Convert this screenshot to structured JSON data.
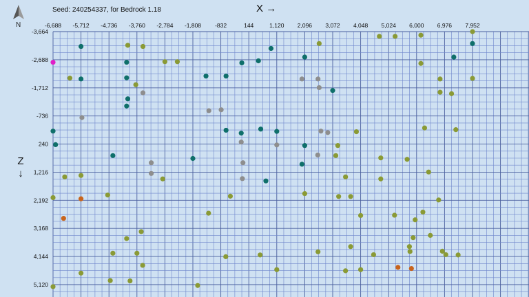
{
  "header": {
    "seed_text": "Seed: 240254337, for Bedrock 1.18",
    "x_axis_label": "X",
    "x_axis_arrow": "→",
    "z_axis_label": "Z",
    "z_axis_arrow": "↓",
    "compass_letter": "N"
  },
  "colors": {
    "background": "#cfe1f2",
    "grid_line": "#6f86cc",
    "grid_major": "#4a5f9e",
    "olive_marker": "#8a9a35",
    "teal_marker": "#0f6f6a",
    "gray_marker": "#8e8e8e",
    "orange_marker": "#c8641c",
    "magenta_marker": "#e01ec8"
  },
  "axes": {
    "x_ticks": [
      "-6,688",
      "-5,712",
      "-4,736",
      "-3,760",
      "-2,784",
      "-1,808",
      "-832",
      "144",
      "1,120",
      "2,096",
      "3,072",
      "4,048",
      "5,024",
      "6,000",
      "6,976",
      "7,952"
    ],
    "z_ticks": [
      "-3,664",
      "-2,688",
      "-1,712",
      "-736",
      "240",
      "1,216",
      "2,192",
      "3,168",
      "4,144",
      "5,120"
    ]
  },
  "chart_data": {
    "type": "scatter",
    "xlim": [
      -6688,
      7952
    ],
    "ylim": [
      -3664,
      5120
    ],
    "y_inverted": true,
    "grid": true,
    "markers": [
      {
        "kind": "magenta",
        "x": -6688,
        "z": -2600
      },
      {
        "kind": "teal",
        "x": -5712,
        "z": -3150
      },
      {
        "kind": "olive",
        "x": -4080,
        "z": -3190
      },
      {
        "kind": "olive",
        "x": -3550,
        "z": -3150
      },
      {
        "kind": "teal",
        "x": -4120,
        "z": -2600
      },
      {
        "kind": "olive",
        "x": -6100,
        "z": -2050
      },
      {
        "kind": "teal",
        "x": -5712,
        "z": -2020
      },
      {
        "kind": "teal",
        "x": -4120,
        "z": -2060
      },
      {
        "kind": "olive",
        "x": -3800,
        "z": -1820
      },
      {
        "kind": "gray",
        "x": -3550,
        "z": -1540
      },
      {
        "kind": "teal",
        "x": -4080,
        "z": -1330
      },
      {
        "kind": "teal",
        "x": -4120,
        "z": -1080
      },
      {
        "kind": "gray",
        "x": -5680,
        "z": -680
      },
      {
        "kind": "olive",
        "x": -2784,
        "z": -2620
      },
      {
        "kind": "olive",
        "x": -2350,
        "z": -2620
      },
      {
        "kind": "teal",
        "x": -1350,
        "z": -2120
      },
      {
        "kind": "teal",
        "x": -650,
        "z": -2120
      },
      {
        "kind": "teal",
        "x": -100,
        "z": -2580
      },
      {
        "kind": "teal",
        "x": 480,
        "z": -2650
      },
      {
        "kind": "teal",
        "x": 920,
        "z": -3080
      },
      {
        "kind": "teal",
        "x": 2096,
        "z": -2780
      },
      {
        "kind": "olive",
        "x": 2600,
        "z": -3250
      },
      {
        "kind": "olive",
        "x": 4700,
        "z": -3500
      },
      {
        "kind": "olive",
        "x": 5250,
        "z": -3500
      },
      {
        "kind": "olive",
        "x": 6150,
        "z": -3540
      },
      {
        "kind": "olive",
        "x": 7952,
        "z": -3664
      },
      {
        "kind": "teal",
        "x": 7950,
        "z": -3250
      },
      {
        "kind": "teal",
        "x": 7300,
        "z": -2780
      },
      {
        "kind": "olive",
        "x": 6150,
        "z": -2560
      },
      {
        "kind": "gray",
        "x": 2000,
        "z": -2020
      },
      {
        "kind": "gray",
        "x": 2560,
        "z": -2020
      },
      {
        "kind": "gray",
        "x": 2600,
        "z": -1720
      },
      {
        "kind": "teal",
        "x": 3072,
        "z": -1620
      },
      {
        "kind": "olive",
        "x": 6820,
        "z": -2020
      },
      {
        "kind": "olive",
        "x": 7952,
        "z": -2040
      },
      {
        "kind": "olive",
        "x": 6820,
        "z": -1560
      },
      {
        "kind": "olive",
        "x": 7220,
        "z": -1510
      },
      {
        "kind": "gray",
        "x": -1250,
        "z": -920
      },
      {
        "kind": "gray",
        "x": -820,
        "z": -950
      },
      {
        "kind": "teal",
        "x": -650,
        "z": -240
      },
      {
        "kind": "teal",
        "x": -120,
        "z": -140
      },
      {
        "kind": "gray",
        "x": -120,
        "z": 170
      },
      {
        "kind": "teal",
        "x": 560,
        "z": -280
      },
      {
        "kind": "teal",
        "x": 1120,
        "z": -200
      },
      {
        "kind": "gray",
        "x": 2660,
        "z": -210
      },
      {
        "kind": "gray",
        "x": 2900,
        "z": -160
      },
      {
        "kind": "olive",
        "x": 3900,
        "z": -190
      },
      {
        "kind": "olive",
        "x": 6280,
        "z": -320
      },
      {
        "kind": "olive",
        "x": 7370,
        "z": -260
      },
      {
        "kind": "teal",
        "x": -6688,
        "z": -210
      },
      {
        "kind": "teal",
        "x": -6600,
        "z": 260
      },
      {
        "kind": "gray",
        "x": 1120,
        "z": 270
      },
      {
        "kind": "teal",
        "x": 2096,
        "z": 290
      },
      {
        "kind": "olive",
        "x": 3250,
        "z": 290
      },
      {
        "kind": "teal",
        "x": -4600,
        "z": 640
      },
      {
        "kind": "teal",
        "x": -1808,
        "z": 740
      },
      {
        "kind": "gray",
        "x": -3260,
        "z": 890
      },
      {
        "kind": "gray",
        "x": -60,
        "z": 890
      },
      {
        "kind": "gray",
        "x": 2550,
        "z": 620
      },
      {
        "kind": "olive",
        "x": 3180,
        "z": 640
      },
      {
        "kind": "teal",
        "x": 2000,
        "z": 940
      },
      {
        "kind": "olive",
        "x": 4750,
        "z": 720
      },
      {
        "kind": "olive",
        "x": 5670,
        "z": 770
      },
      {
        "kind": "olive",
        "x": -6280,
        "z": 1380
      },
      {
        "kind": "olive",
        "x": -5712,
        "z": 1330
      },
      {
        "kind": "gray",
        "x": -3260,
        "z": 1260
      },
      {
        "kind": "olive",
        "x": -2860,
        "z": 1450
      },
      {
        "kind": "gray",
        "x": -80,
        "z": 1440
      },
      {
        "kind": "teal",
        "x": 740,
        "z": 1520
      },
      {
        "kind": "olive",
        "x": 3520,
        "z": 1380
      },
      {
        "kind": "olive",
        "x": 4750,
        "z": 1450
      },
      {
        "kind": "olive",
        "x": 6420,
        "z": 1210
      },
      {
        "kind": "olive",
        "x": -6688,
        "z": 2100
      },
      {
        "kind": "orange",
        "x": -5712,
        "z": 2140
      },
      {
        "kind": "olive",
        "x": -4780,
        "z": 2010
      },
      {
        "kind": "olive",
        "x": -500,
        "z": 2050
      },
      {
        "kind": "olive",
        "x": 2096,
        "z": 1960
      },
      {
        "kind": "olive",
        "x": 3280,
        "z": 2060
      },
      {
        "kind": "olive",
        "x": 3700,
        "z": 2060
      },
      {
        "kind": "olive",
        "x": 6770,
        "z": 2180
      },
      {
        "kind": "orange",
        "x": -6320,
        "z": 2820
      },
      {
        "kind": "olive",
        "x": -1260,
        "z": 2640
      },
      {
        "kind": "olive",
        "x": 4048,
        "z": 2720
      },
      {
        "kind": "olive",
        "x": 5230,
        "z": 2710
      },
      {
        "kind": "olive",
        "x": 5950,
        "z": 2870
      },
      {
        "kind": "olive",
        "x": 6220,
        "z": 2600
      },
      {
        "kind": "olive",
        "x": -4120,
        "z": 3520
      },
      {
        "kind": "olive",
        "x": -3610,
        "z": 3280
      },
      {
        "kind": "olive",
        "x": 5880,
        "z": 3490
      },
      {
        "kind": "olive",
        "x": 6480,
        "z": 3410
      },
      {
        "kind": "olive",
        "x": 3700,
        "z": 3800
      },
      {
        "kind": "olive",
        "x": 5750,
        "z": 3800
      },
      {
        "kind": "olive",
        "x": 6900,
        "z": 3960
      },
      {
        "kind": "olive",
        "x": -4600,
        "z": 4030
      },
      {
        "kind": "olive",
        "x": -3760,
        "z": 4030
      },
      {
        "kind": "olive",
        "x": -660,
        "z": 4150
      },
      {
        "kind": "olive",
        "x": 540,
        "z": 4090
      },
      {
        "kind": "olive",
        "x": 2560,
        "z": 3980
      },
      {
        "kind": "olive",
        "x": 4500,
        "z": 4080
      },
      {
        "kind": "olive",
        "x": 5770,
        "z": 3970
      },
      {
        "kind": "olive",
        "x": 7020,
        "z": 4080
      },
      {
        "kind": "olive",
        "x": 7450,
        "z": 4090
      },
      {
        "kind": "olive",
        "x": -3560,
        "z": 4450
      },
      {
        "kind": "olive",
        "x": -5712,
        "z": 4720
      },
      {
        "kind": "olive",
        "x": 1120,
        "z": 4600
      },
      {
        "kind": "olive",
        "x": 3520,
        "z": 4640
      },
      {
        "kind": "olive",
        "x": 4048,
        "z": 4600
      },
      {
        "kind": "orange",
        "x": 5350,
        "z": 4520
      },
      {
        "kind": "orange",
        "x": 5820,
        "z": 4560
      },
      {
        "kind": "olive",
        "x": -4690,
        "z": 4980
      },
      {
        "kind": "olive",
        "x": -4000,
        "z": 4990
      },
      {
        "kind": "olive",
        "x": -6688,
        "z": 5190
      },
      {
        "kind": "olive",
        "x": -1640,
        "z": 5150
      }
    ]
  }
}
